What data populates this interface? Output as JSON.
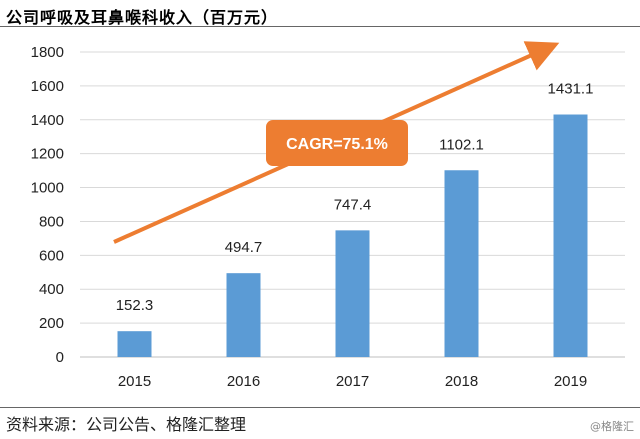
{
  "header": {
    "title": "公司呼吸及耳鼻喉科收入（百万元）"
  },
  "footer": {
    "source": "资料来源：公司公告、格隆汇整理",
    "watermark": "@格隆汇"
  },
  "colors": {
    "bar": "#5B9BD5",
    "trend": "#ED7D31",
    "annotation_bg": "#ED7D31",
    "gridline": "#d9d9d9"
  },
  "chart_data": {
    "type": "bar",
    "title": "公司呼吸及耳鼻喉科收入（百万元）",
    "categories": [
      "2015",
      "2016",
      "2017",
      "2018",
      "2019"
    ],
    "values": [
      152.3,
      494.7,
      747.4,
      1102.1,
      1431.1
    ],
    "value_labels": [
      "152.3",
      "494.7",
      "747.4",
      "1102.1",
      "1431.1"
    ],
    "xlabel": "",
    "ylabel": "",
    "ylim": [
      0,
      1800
    ],
    "yticks": [
      0,
      200,
      400,
      600,
      800,
      1000,
      1200,
      1400,
      1600,
      1800
    ],
    "grid": true,
    "annotation": {
      "text": "CAGR=75.1%"
    },
    "trend_arrow": true
  }
}
